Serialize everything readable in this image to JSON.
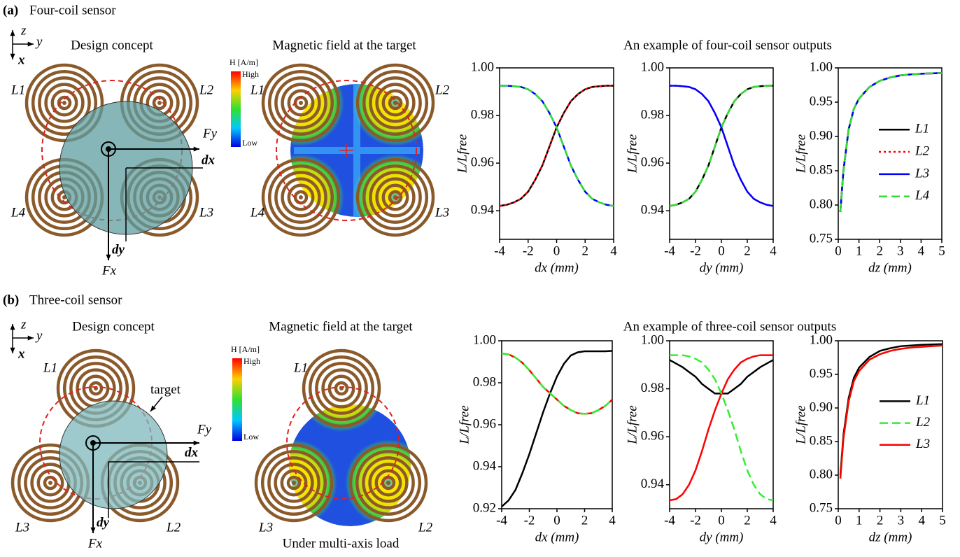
{
  "panels": [
    {
      "label": "(a)",
      "title": "Four-coil sensor",
      "design_title": "Design concept",
      "field_title": "Magnetic field at the target",
      "outputs_title": "An example of four-coil sensor outputs",
      "colorbar": {
        "title": "H [A/m]",
        "high": "High",
        "low": "Low"
      },
      "coils": [
        "L1",
        "L2",
        "L3",
        "L4"
      ],
      "axes": [
        "z",
        "y",
        "x"
      ],
      "forces": [
        "Fy",
        "Fx"
      ],
      "offsets": [
        "dx",
        "dy"
      ]
    },
    {
      "label": "(b)",
      "title": "Three-coil sensor",
      "design_title": "Design concept",
      "field_title": "Magnetic field at the target",
      "outputs_title": "An example of three-coil sensor outputs",
      "colorbar": {
        "title": "H [A/m]",
        "high": "High",
        "low": "Low"
      },
      "coils": [
        "L1",
        "L2",
        "L3"
      ],
      "axes": [
        "z",
        "y",
        "x"
      ],
      "forces": [
        "Fy",
        "Fx"
      ],
      "offsets": [
        "dx",
        "dy"
      ],
      "target": "target",
      "field_note": "Under multi-axis load"
    }
  ],
  "chart_data": [
    {
      "type": "line",
      "xlabel": "dx (mm)",
      "ylabel": "L/Lfree",
      "xlim": [
        -4,
        4
      ],
      "ylim": [
        0.928,
        1.0
      ],
      "xticks": [
        -4,
        -2,
        0,
        2,
        4
      ],
      "yticks": [
        0.94,
        0.96,
        0.98,
        {
          "value": 1.0,
          "label": "1.00"
        }
      ],
      "x": [
        -4,
        -3.5,
        -3,
        -2.5,
        -2,
        -1.5,
        -1,
        -0.5,
        0,
        0.5,
        1,
        1.5,
        2,
        2.5,
        3,
        3.5,
        4
      ],
      "series": [
        {
          "name": "L1",
          "color": "#000000",
          "linestyle": "solid",
          "values": [
            0.942,
            0.9425,
            0.9435,
            0.945,
            0.948,
            0.953,
            0.959,
            0.967,
            0.975,
            0.981,
            0.986,
            0.989,
            0.991,
            0.992,
            0.9923,
            0.9925,
            0.9925
          ]
        },
        {
          "name": "L2",
          "color": "#ff0000",
          "linestyle": "dotted",
          "values": [
            0.942,
            0.9425,
            0.9435,
            0.945,
            0.948,
            0.953,
            0.959,
            0.967,
            0.975,
            0.981,
            0.986,
            0.989,
            0.991,
            0.992,
            0.9923,
            0.9925,
            0.9925
          ]
        },
        {
          "name": "L3",
          "color": "#0000ff",
          "linestyle": "solid",
          "values": [
            0.9925,
            0.9925,
            0.9923,
            0.992,
            0.991,
            0.989,
            0.986,
            0.981,
            0.975,
            0.967,
            0.959,
            0.953,
            0.948,
            0.945,
            0.9435,
            0.9425,
            0.942
          ]
        },
        {
          "name": "L4",
          "color": "#33dd33",
          "linestyle": "dashed",
          "values": [
            0.9925,
            0.9925,
            0.9923,
            0.992,
            0.991,
            0.989,
            0.986,
            0.981,
            0.975,
            0.967,
            0.959,
            0.953,
            0.948,
            0.945,
            0.9435,
            0.9425,
            0.942
          ]
        }
      ]
    },
    {
      "type": "line",
      "xlabel": "dy (mm)",
      "ylabel": "L/Lfree",
      "xlim": [
        -4,
        4
      ],
      "ylim": [
        0.928,
        1.0
      ],
      "xticks": [
        -4,
        -2,
        0,
        2,
        4
      ],
      "yticks": [
        0.94,
        0.96,
        0.98,
        {
          "value": 1.0,
          "label": "1.00"
        }
      ],
      "x": [
        -4,
        -3.5,
        -3,
        -2.5,
        -2,
        -1.5,
        -1,
        -0.5,
        0,
        0.5,
        1,
        1.5,
        2,
        2.5,
        3,
        3.5,
        4
      ],
      "series": [
        {
          "name": "L1",
          "color": "#000000",
          "linestyle": "solid",
          "values": [
            0.942,
            0.9425,
            0.9435,
            0.945,
            0.948,
            0.953,
            0.959,
            0.967,
            0.975,
            0.981,
            0.986,
            0.989,
            0.991,
            0.992,
            0.9923,
            0.9925,
            0.9925
          ]
        },
        {
          "name": "L2",
          "color": "#ff0000",
          "linestyle": "dotted",
          "values": [
            0.9925,
            0.9925,
            0.9923,
            0.992,
            0.991,
            0.989,
            0.986,
            0.981,
            0.975,
            0.967,
            0.959,
            0.953,
            0.948,
            0.945,
            0.9435,
            0.9425,
            0.942
          ]
        },
        {
          "name": "L3",
          "color": "#0000ff",
          "linestyle": "solid",
          "values": [
            0.9925,
            0.9925,
            0.9923,
            0.992,
            0.991,
            0.989,
            0.986,
            0.981,
            0.975,
            0.967,
            0.959,
            0.953,
            0.948,
            0.945,
            0.9435,
            0.9425,
            0.942
          ]
        },
        {
          "name": "L4",
          "color": "#33dd33",
          "linestyle": "dashed",
          "values": [
            0.942,
            0.9425,
            0.9435,
            0.945,
            0.948,
            0.953,
            0.959,
            0.967,
            0.975,
            0.981,
            0.986,
            0.989,
            0.991,
            0.992,
            0.9923,
            0.9925,
            0.9925
          ]
        }
      ]
    },
    {
      "type": "line",
      "xlabel": "dz (mm)",
      "ylabel": "L/Lfree",
      "xlim": [
        0,
        5
      ],
      "ylim": [
        0.75,
        1.0
      ],
      "xticks": [
        0,
        1,
        2,
        3,
        4,
        5
      ],
      "yticks": [
        0.75,
        {
          "value": 0.8,
          "label": "0.80"
        },
        0.85,
        {
          "value": 0.9,
          "label": "0.90"
        },
        0.95,
        {
          "value": 1.0,
          "label": "1.00"
        }
      ],
      "legend": "right",
      "x": [
        0.1,
        0.25,
        0.5,
        0.75,
        1,
        1.5,
        2,
        2.5,
        3,
        3.5,
        4,
        4.5,
        5
      ],
      "series": [
        {
          "name": "L1",
          "color": "#000000",
          "linestyle": "solid",
          "values": [
            0.79,
            0.85,
            0.91,
            0.94,
            0.955,
            0.972,
            0.981,
            0.986,
            0.989,
            0.9905,
            0.9915,
            0.992,
            0.9925
          ]
        },
        {
          "name": "L2",
          "color": "#ff0000",
          "linestyle": "dotted",
          "values": [
            0.79,
            0.85,
            0.91,
            0.94,
            0.955,
            0.972,
            0.981,
            0.986,
            0.989,
            0.9905,
            0.9915,
            0.992,
            0.9925
          ]
        },
        {
          "name": "L3",
          "color": "#0000ff",
          "linestyle": "solid",
          "values": [
            0.79,
            0.85,
            0.91,
            0.94,
            0.955,
            0.972,
            0.981,
            0.986,
            0.989,
            0.9905,
            0.9915,
            0.992,
            0.9925
          ]
        },
        {
          "name": "L4",
          "color": "#33dd33",
          "linestyle": "dashed",
          "values": [
            0.79,
            0.85,
            0.91,
            0.94,
            0.955,
            0.972,
            0.981,
            0.986,
            0.989,
            0.9905,
            0.9915,
            0.992,
            0.9925
          ]
        }
      ]
    },
    {
      "type": "line",
      "xlabel": "dx (mm)",
      "ylabel": "L/Lfree",
      "xlim": [
        -4,
        4
      ],
      "ylim": [
        0.92,
        1.0
      ],
      "xticks": [
        -4,
        -2,
        0,
        2,
        4
      ],
      "yticks": [
        0.92,
        0.94,
        0.96,
        0.98,
        {
          "value": 1.0,
          "label": "1.00"
        }
      ],
      "x": [
        -4,
        -3.5,
        -3,
        -2.5,
        -2,
        -1.5,
        -1,
        -0.5,
        0,
        0.5,
        1,
        1.5,
        2,
        2.5,
        3,
        3.5,
        4
      ],
      "series": [
        {
          "name": "L1",
          "color": "#000000",
          "linestyle": "solid",
          "values": [
            0.921,
            0.924,
            0.929,
            0.937,
            0.946,
            0.956,
            0.966,
            0.975,
            0.983,
            0.989,
            0.993,
            0.9945,
            0.995,
            0.995,
            0.995,
            0.995,
            0.9952
          ]
        },
        {
          "name": "L3",
          "color": "#ff0000",
          "linestyle": "solid",
          "values": [
            0.994,
            0.9935,
            0.992,
            0.9895,
            0.986,
            0.982,
            0.978,
            0.975,
            0.972,
            0.969,
            0.967,
            0.9655,
            0.9652,
            0.9655,
            0.967,
            0.969,
            0.972
          ]
        },
        {
          "name": "L2",
          "color": "#33ee33",
          "linestyle": "dashed",
          "values": [
            0.994,
            0.9935,
            0.992,
            0.9895,
            0.986,
            0.982,
            0.978,
            0.975,
            0.972,
            0.969,
            0.967,
            0.9655,
            0.9652,
            0.9655,
            0.967,
            0.969,
            0.972
          ]
        }
      ]
    },
    {
      "type": "line",
      "xlabel": "dy (mm)",
      "ylabel": "L/Lfree",
      "xlim": [
        -4,
        4
      ],
      "ylim": [
        0.93,
        1.0
      ],
      "xticks": [
        -4,
        -2,
        0,
        2,
        4
      ],
      "yticks": [
        0.94,
        0.96,
        0.98,
        {
          "value": 1.0,
          "label": "1.00"
        }
      ],
      "x": [
        -4,
        -3.5,
        -3,
        -2.5,
        -2,
        -1.5,
        -1,
        -0.5,
        0,
        0.5,
        1,
        1.5,
        2,
        2.5,
        3,
        3.5,
        4
      ],
      "series": [
        {
          "name": "L1",
          "color": "#000000",
          "linestyle": "solid",
          "values": [
            0.992,
            0.9905,
            0.989,
            0.987,
            0.985,
            0.982,
            0.98,
            0.978,
            0.978,
            0.978,
            0.98,
            0.982,
            0.985,
            0.987,
            0.989,
            0.9905,
            0.992
          ]
        },
        {
          "name": "L3",
          "color": "#ff0000",
          "linestyle": "solid",
          "values": [
            0.9335,
            0.934,
            0.936,
            0.94,
            0.946,
            0.954,
            0.963,
            0.971,
            0.978,
            0.984,
            0.988,
            0.991,
            0.9925,
            0.9935,
            0.994,
            0.994,
            0.994
          ]
        },
        {
          "name": "L2",
          "color": "#33ee33",
          "linestyle": "dashed",
          "values": [
            0.994,
            0.994,
            0.994,
            0.9935,
            0.9925,
            0.991,
            0.988,
            0.984,
            0.978,
            0.971,
            0.963,
            0.954,
            0.946,
            0.94,
            0.936,
            0.934,
            0.9335
          ]
        }
      ]
    },
    {
      "type": "line",
      "xlabel": "dz (mm)",
      "ylabel": "L/Lfree",
      "xlim": [
        0,
        5
      ],
      "ylim": [
        0.75,
        1.0
      ],
      "xticks": [
        0,
        1,
        2,
        3,
        4,
        5
      ],
      "yticks": [
        0.75,
        {
          "value": 0.8,
          "label": "0.80"
        },
        0.85,
        {
          "value": 0.9,
          "label": "0.90"
        },
        0.95,
        {
          "value": 1.0,
          "label": "1.00"
        }
      ],
      "legend": "right",
      "x": [
        0.1,
        0.25,
        0.5,
        0.75,
        1,
        1.5,
        2,
        2.5,
        3,
        3.5,
        4,
        4.5,
        5
      ],
      "series": [
        {
          "name": "L1",
          "color": "#000000",
          "linestyle": "solid",
          "values": [
            0.8,
            0.86,
            0.915,
            0.945,
            0.96,
            0.976,
            0.985,
            0.989,
            0.992,
            0.993,
            0.994,
            0.9945,
            0.995
          ]
        },
        {
          "name": "L2",
          "color": "#33ee33",
          "linestyle": "dashed",
          "values": [
            0.795,
            0.855,
            0.91,
            0.94,
            0.955,
            0.972,
            0.98,
            0.985,
            0.988,
            0.99,
            0.991,
            0.992,
            0.993
          ]
        },
        {
          "name": "L3",
          "color": "#ff0000",
          "linestyle": "solid",
          "values": [
            0.795,
            0.855,
            0.91,
            0.94,
            0.955,
            0.972,
            0.98,
            0.985,
            0.988,
            0.99,
            0.991,
            0.992,
            0.993
          ]
        }
      ]
    }
  ]
}
